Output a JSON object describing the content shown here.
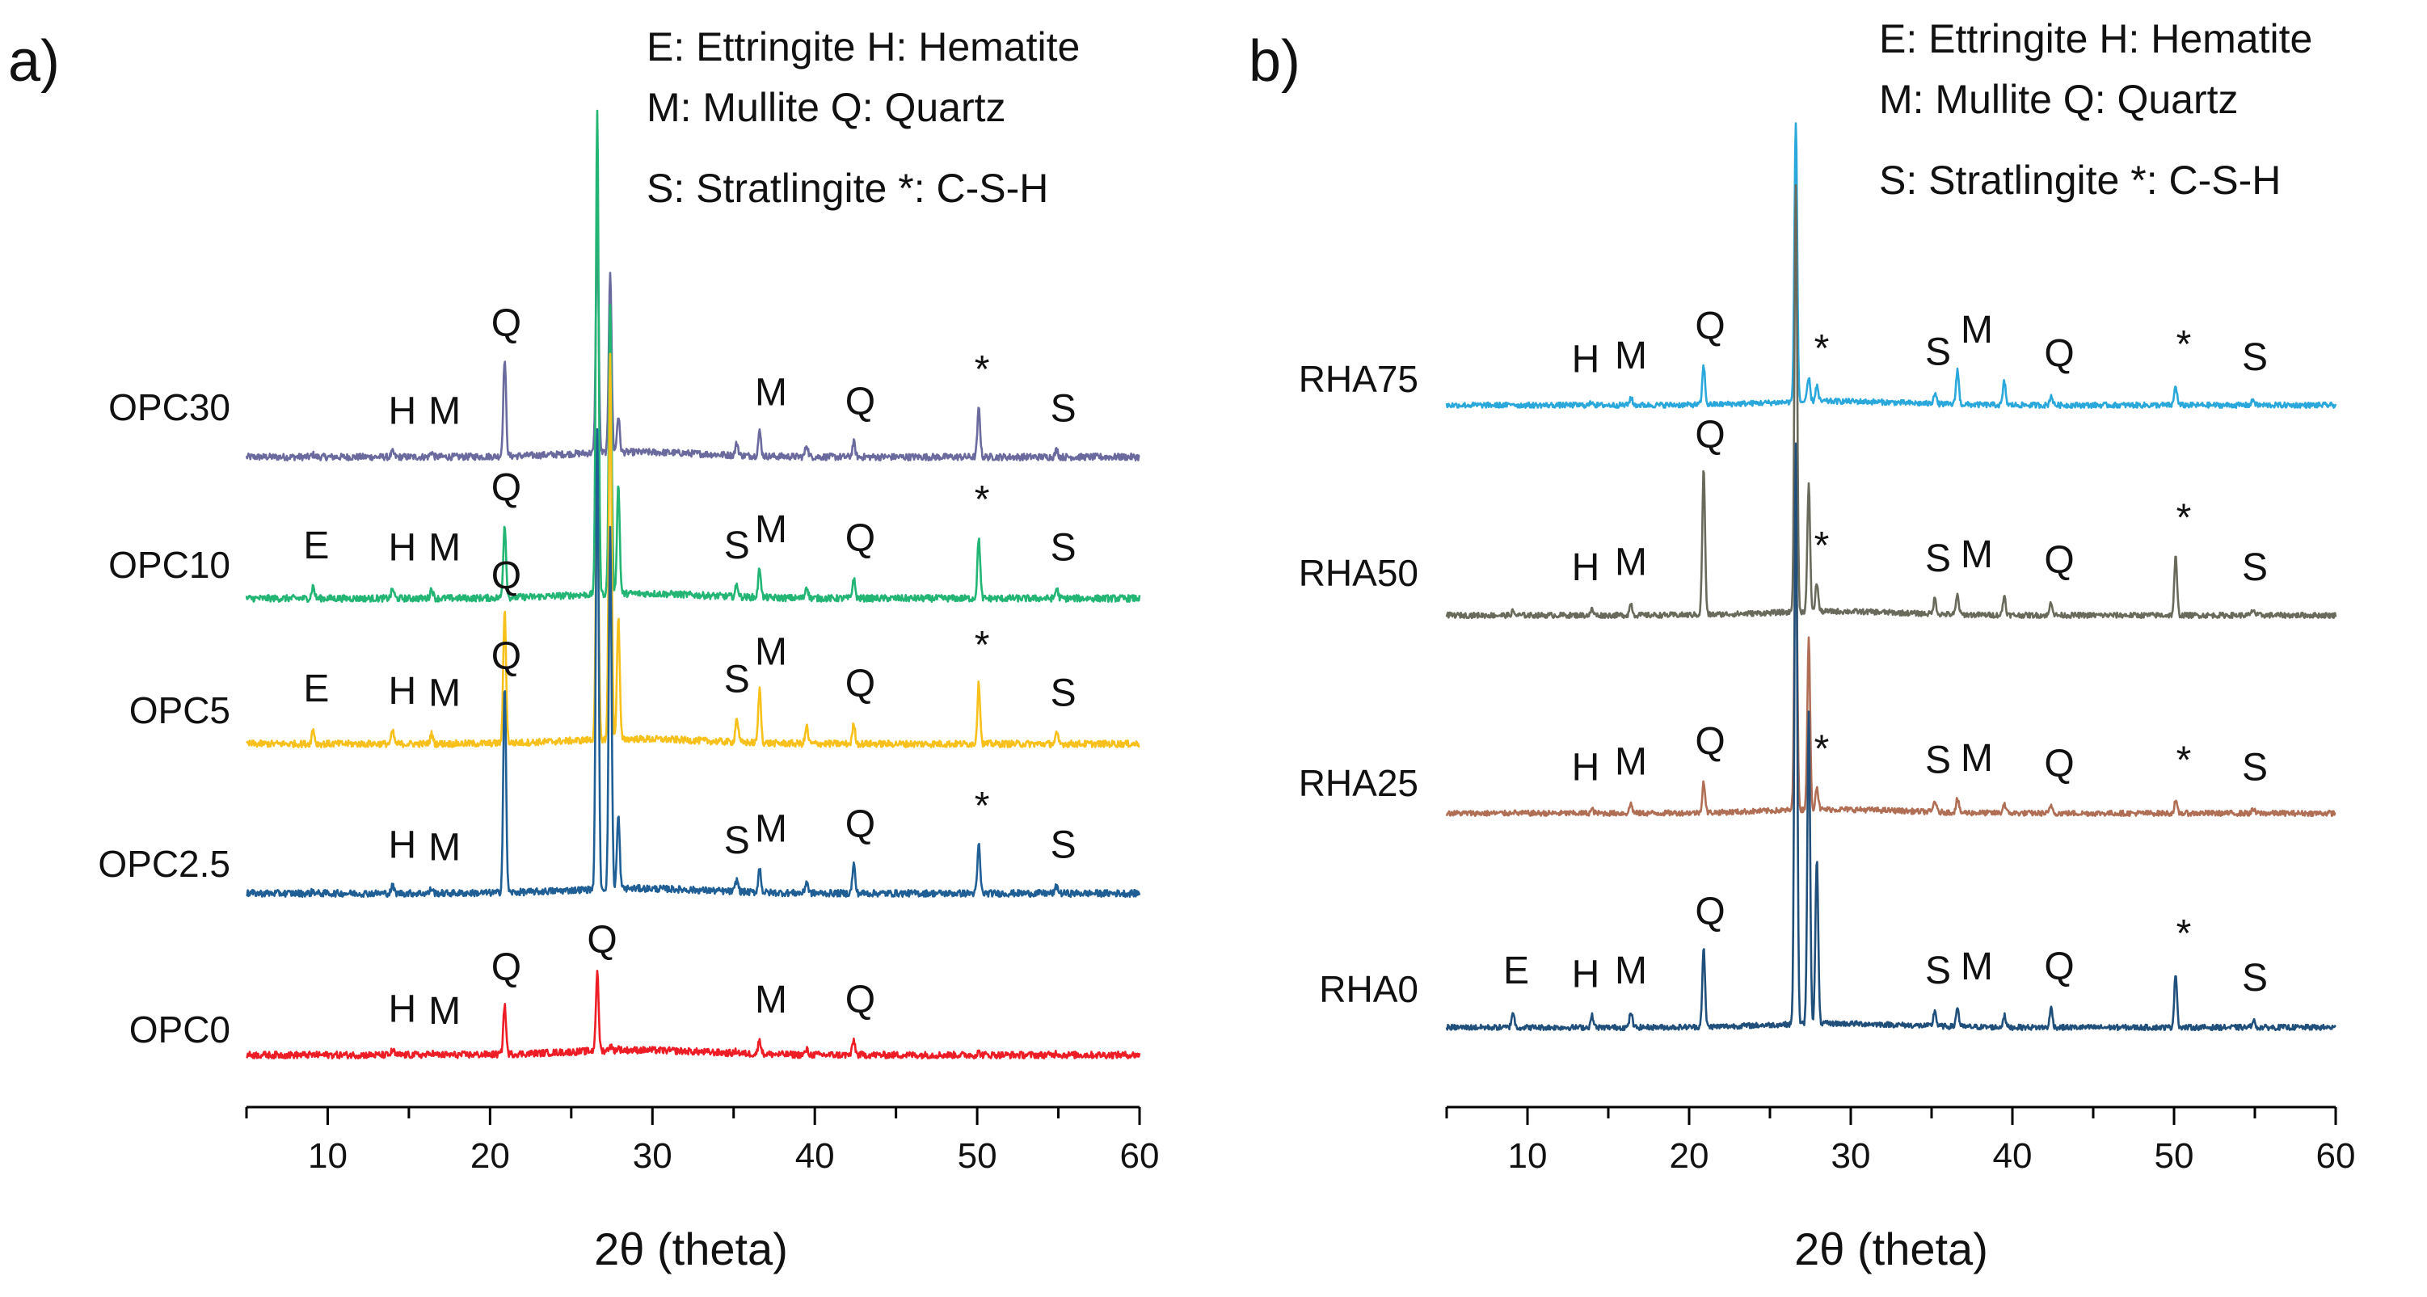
{
  "chart_data": [
    {
      "type": "line",
      "panel": "a)",
      "xlabel": "2θ (theta)",
      "xlim": [
        5,
        60
      ],
      "xticks": [
        10,
        20,
        30,
        40,
        50,
        60
      ],
      "legend_lines": [
        "E: Ettringite H: Hematite",
        "M: Mullite Q: Quartz",
        "S: Stratlingite *: C-S-H"
      ],
      "peaks_common": [
        9.1,
        14.0,
        16.4,
        20.9,
        26.6,
        27.4,
        27.9,
        35.2,
        36.6,
        39.5,
        42.4,
        50.1,
        54.9
      ],
      "series": [
        {
          "name": "OPC30",
          "color": "#6a6a9e",
          "peak_heights": [
            0.01,
            0.02,
            0.02,
            0.4,
            0.95,
            0.75,
            0.15,
            0.05,
            0.1,
            0.05,
            0.06,
            0.2,
            0.03
          ],
          "markers": [
            {
              "t": "H",
              "x": 14.6
            },
            {
              "t": "M",
              "x": 17.2
            },
            {
              "t": "Q",
              "x": 21.0
            },
            {
              "t": "M",
              "x": 37.3
            },
            {
              "t": "Q",
              "x": 42.8
            },
            {
              "t": "*",
              "x": 50.3
            },
            {
              "t": "S",
              "x": 55.3
            }
          ]
        },
        {
          "name": "OPC10",
          "color": "#22b573",
          "peak_heights": [
            0.05,
            0.04,
            0.04,
            0.3,
            2.0,
            1.2,
            0.45,
            0.05,
            0.12,
            0.05,
            0.08,
            0.25,
            0.04
          ],
          "markers": [
            {
              "t": "E",
              "x": 9.3
            },
            {
              "t": "H",
              "x": 14.6
            },
            {
              "t": "M",
              "x": 17.2
            },
            {
              "t": "Q",
              "x": 21.0
            },
            {
              "t": "S",
              "x": 35.2
            },
            {
              "t": "M",
              "x": 37.3
            },
            {
              "t": "Q",
              "x": 42.8
            },
            {
              "t": "*",
              "x": 50.3
            },
            {
              "t": "S",
              "x": 55.3
            }
          ]
        },
        {
          "name": "OPC5",
          "color": "#f7c01a",
          "peak_heights": [
            0.06,
            0.05,
            0.04,
            0.55,
            1.1,
            1.6,
            0.5,
            0.1,
            0.22,
            0.07,
            0.08,
            0.25,
            0.04
          ],
          "markers": [
            {
              "t": "E",
              "x": 9.3
            },
            {
              "t": "H",
              "x": 14.6
            },
            {
              "t": "M",
              "x": 17.2
            },
            {
              "t": "Q",
              "x": 21.0
            },
            {
              "t": "S",
              "x": 35.2
            },
            {
              "t": "M",
              "x": 37.3
            },
            {
              "t": "Q",
              "x": 42.8
            },
            {
              "t": "*",
              "x": 50.3
            },
            {
              "t": "S",
              "x": 55.3
            }
          ]
        },
        {
          "name": "OPC2.5",
          "color": "#1f5f95",
          "peak_heights": [
            0.01,
            0.03,
            0.02,
            0.85,
            1.9,
            1.5,
            0.3,
            0.05,
            0.1,
            0.05,
            0.12,
            0.2,
            0.03
          ],
          "markers": [
            {
              "t": "H",
              "x": 14.6
            },
            {
              "t": "M",
              "x": 17.2
            },
            {
              "t": "Q",
              "x": 21.0
            },
            {
              "t": "S",
              "x": 35.2
            },
            {
              "t": "M",
              "x": 37.3
            },
            {
              "t": "Q",
              "x": 42.8
            },
            {
              "t": "*",
              "x": 50.3
            },
            {
              "t": "S",
              "x": 55.3
            }
          ]
        },
        {
          "name": "OPC0",
          "color": "#ee1c25",
          "peak_heights": [
            0.0,
            0.02,
            0.01,
            0.2,
            0.32,
            0.02,
            0.01,
            0.01,
            0.06,
            0.02,
            0.06,
            0.01,
            0.01
          ],
          "markers": [
            {
              "t": "H",
              "x": 14.6
            },
            {
              "t": "M",
              "x": 17.2
            },
            {
              "t": "Q",
              "x": 21.0
            },
            {
              "t": "Q",
              "x": 26.9
            },
            {
              "t": "M",
              "x": 37.3
            },
            {
              "t": "Q",
              "x": 42.8
            }
          ]
        }
      ]
    },
    {
      "type": "line",
      "panel": "b)",
      "xlabel": "2θ (theta)",
      "xlim": [
        5,
        60
      ],
      "xticks": [
        10,
        20,
        30,
        40,
        50,
        60
      ],
      "legend_lines": [
        "E: Ettringite H: Hematite",
        "M: Mullite Q: Quartz",
        "S: Stratlingite *: C-S-H"
      ],
      "peaks_common": [
        9.1,
        14.0,
        16.4,
        20.9,
        26.6,
        27.4,
        27.9,
        35.2,
        36.6,
        39.5,
        42.4,
        50.1,
        54.9
      ],
      "series": [
        {
          "name": "RHA75",
          "color": "#2aa8dc",
          "peak_heights": [
            0.01,
            0.02,
            0.04,
            0.2,
            1.45,
            0.12,
            0.08,
            0.06,
            0.18,
            0.12,
            0.05,
            0.1,
            0.03
          ],
          "markers": [
            {
              "t": "H",
              "x": 13.6
            },
            {
              "t": "M",
              "x": 16.4
            },
            {
              "t": "Q",
              "x": 21.3
            },
            {
              "t": "*",
              "x": 28.2
            },
            {
              "t": "S",
              "x": 35.4
            },
            {
              "t": "M",
              "x": 37.8
            },
            {
              "t": "Q",
              "x": 42.9
            },
            {
              "t": "*",
              "x": 50.6
            },
            {
              "t": "S",
              "x": 55.0
            }
          ]
        },
        {
          "name": "RHA50",
          "color": "#6a6a5c",
          "peak_heights": [
            0.02,
            0.03,
            0.06,
            0.75,
            2.2,
            0.65,
            0.15,
            0.08,
            0.1,
            0.1,
            0.07,
            0.3,
            0.03
          ],
          "markers": [
            {
              "t": "H",
              "x": 13.6
            },
            {
              "t": "M",
              "x": 16.4
            },
            {
              "t": "Q",
              "x": 21.3
            },
            {
              "t": "*",
              "x": 28.2
            },
            {
              "t": "S",
              "x": 35.4
            },
            {
              "t": "M",
              "x": 37.8
            },
            {
              "t": "Q",
              "x": 42.9
            },
            {
              "t": "*",
              "x": 50.6
            },
            {
              "t": "S",
              "x": 55.0
            }
          ]
        },
        {
          "name": "RHA25",
          "color": "#b06e55",
          "peak_heights": [
            0.01,
            0.02,
            0.05,
            0.16,
            1.55,
            0.88,
            0.12,
            0.06,
            0.07,
            0.05,
            0.04,
            0.06,
            0.02
          ],
          "markers": [
            {
              "t": "H",
              "x": 13.6
            },
            {
              "t": "M",
              "x": 16.4
            },
            {
              "t": "Q",
              "x": 21.3
            },
            {
              "t": "*",
              "x": 28.2
            },
            {
              "t": "S",
              "x": 35.4
            },
            {
              "t": "M",
              "x": 37.8
            },
            {
              "t": "Q",
              "x": 42.9
            },
            {
              "t": "*",
              "x": 50.6
            },
            {
              "t": "S",
              "x": 55.0
            }
          ]
        },
        {
          "name": "RHA0",
          "color": "#1f4f7a",
          "peak_heights": [
            0.08,
            0.06,
            0.08,
            0.4,
            3.0,
            1.6,
            0.85,
            0.08,
            0.1,
            0.06,
            0.1,
            0.28,
            0.04
          ],
          "markers": [
            {
              "t": "E",
              "x": 9.3
            },
            {
              "t": "H",
              "x": 13.6
            },
            {
              "t": "M",
              "x": 16.4
            },
            {
              "t": "Q",
              "x": 21.3
            },
            {
              "t": "S",
              "x": 35.4
            },
            {
              "t": "M",
              "x": 37.8
            },
            {
              "t": "Q",
              "x": 42.9
            },
            {
              "t": "*",
              "x": 50.6
            },
            {
              "t": "S",
              "x": 55.0
            }
          ]
        }
      ]
    }
  ]
}
